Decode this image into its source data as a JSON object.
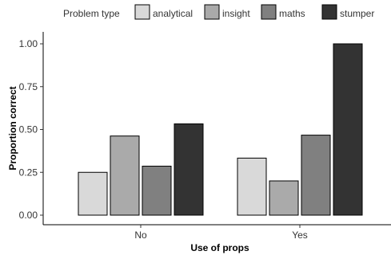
{
  "chart_data": {
    "type": "bar",
    "categories": [
      "No",
      "Yes"
    ],
    "series": [
      {
        "name": "analytical",
        "values": [
          0.25,
          0.333
        ],
        "color": "#d9d9d9"
      },
      {
        "name": "insight",
        "values": [
          0.462,
          0.2
        ],
        "color": "#aaaaaa"
      },
      {
        "name": "maths",
        "values": [
          0.286,
          0.467
        ],
        "color": "#808080"
      },
      {
        "name": "stumper",
        "values": [
          0.533,
          1.0
        ],
        "color": "#333333"
      }
    ],
    "legend_title": "Problem type",
    "legend_position": "top",
    "xlabel": "Use of props",
    "ylabel": "Proportion correct",
    "ylim": [
      0,
      1
    ],
    "yticks": [
      "0.00",
      "0.25",
      "0.50",
      "0.75",
      "1.00"
    ],
    "grid": false
  }
}
